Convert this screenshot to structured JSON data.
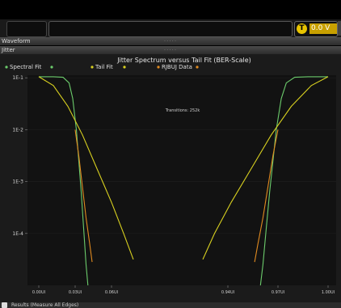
{
  "toolbar": {
    "channel_badge": "T",
    "voltage_value": "0.0 V"
  },
  "panels": {
    "waveform_label": "Waveform",
    "jitter_label": "Jitter",
    "results_label": "Results (Measure All Edges)"
  },
  "colors": {
    "spectral": "#6ccc6c",
    "tail": "#d8d020",
    "rjbuj": "#e08a20",
    "plot_bg": "#121212",
    "frame_bg": "#1b1b1b"
  },
  "chart_data": {
    "type": "line",
    "title": "Jitter Spectrum versus Tail Fit (BER-Scale)",
    "annotation": "Transitions: 252k",
    "legend": [
      {
        "name": "Spectral Fit",
        "color": "#6ccc6c"
      },
      {
        "name": "Tail Fit",
        "color": "#d8d020"
      },
      {
        "name": "RJBUJ Data",
        "color": "#e08a20"
      }
    ],
    "legend_placement": "top",
    "x_tick_labels": [
      "0.00UI",
      "0.03UI",
      "0.06UI",
      "0.94UI",
      "0.97UI",
      "1.00UI"
    ],
    "y_tick_labels": [
      "1E-1",
      "1E-2",
      "1E-3",
      "1E-4"
    ],
    "ylim_log10": [
      -5.0,
      -0.95
    ],
    "y_scale": "log",
    "grid": true,
    "series": [
      {
        "name": "Spectral Fit",
        "segments": [
          [
            [
              0.0,
              -0.98
            ],
            [
              0.012,
              -0.98
            ],
            [
              0.02,
              -0.99
            ],
            [
              0.025,
              -1.1
            ],
            [
              0.028,
              -1.4
            ],
            [
              0.031,
              -2.0
            ],
            [
              0.033,
              -2.6
            ],
            [
              0.035,
              -3.2
            ],
            [
              0.037,
              -3.9
            ],
            [
              0.039,
              -4.6
            ],
            [
              0.0405,
              -5.0
            ]
          ],
          [
            [
              0.9595,
              -5.0
            ],
            [
              0.961,
              -4.6
            ],
            [
              0.963,
              -3.9
            ],
            [
              0.965,
              -3.2
            ],
            [
              0.967,
              -2.6
            ],
            [
              0.969,
              -2.0
            ],
            [
              0.972,
              -1.4
            ],
            [
              0.975,
              -1.1
            ],
            [
              0.98,
              -0.99
            ],
            [
              0.988,
              -0.98
            ],
            [
              1.0,
              -0.98
            ]
          ]
        ]
      },
      {
        "name": "Tail Fit",
        "segments": [
          [
            [
              0.0,
              -0.98
            ],
            [
              0.012,
              -1.15
            ],
            [
              0.024,
              -1.55
            ],
            [
              0.036,
              -2.1
            ],
            [
              0.048,
              -2.75
            ],
            [
              0.06,
              -3.4
            ],
            [
              0.07,
              -4.0
            ],
            [
              0.078,
              -4.5
            ]
          ],
          [
            [
              0.925,
              -4.5
            ],
            [
              0.932,
              -4.0
            ],
            [
              0.942,
              -3.4
            ],
            [
              0.954,
              -2.75
            ],
            [
              0.966,
              -2.1
            ],
            [
              0.978,
              -1.55
            ],
            [
              0.99,
              -1.15
            ],
            [
              1.0,
              -0.98
            ]
          ]
        ]
      },
      {
        "name": "RJBUJ Data",
        "segments": [
          [
            [
              0.03,
              -2.0
            ],
            [
              0.033,
              -2.5
            ],
            [
              0.036,
              -3.1
            ],
            [
              0.039,
              -3.7
            ],
            [
              0.042,
              -4.2
            ],
            [
              0.044,
              -4.55
            ]
          ],
          [
            [
              0.956,
              -4.55
            ],
            [
              0.958,
              -4.2
            ],
            [
              0.961,
              -3.7
            ],
            [
              0.964,
              -3.1
            ],
            [
              0.967,
              -2.5
            ],
            [
              0.97,
              -2.0
            ]
          ]
        ]
      }
    ]
  }
}
